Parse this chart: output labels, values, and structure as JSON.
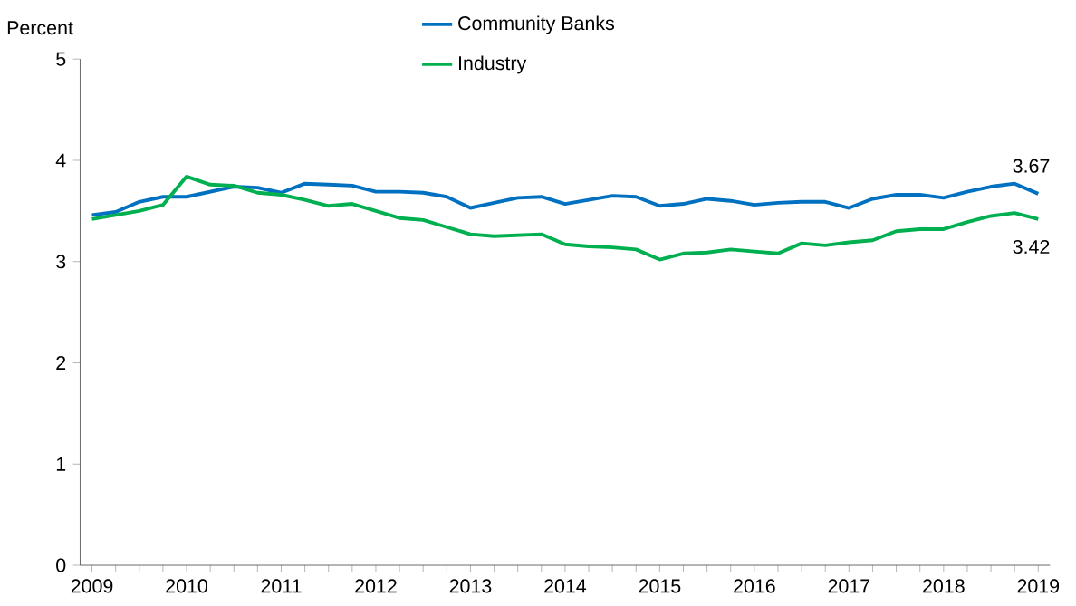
{
  "chart_data": {
    "type": "line",
    "ylabel": "Percent",
    "categories": [
      "2009",
      null,
      null,
      null,
      "2010",
      null,
      null,
      null,
      "2011",
      null,
      null,
      null,
      "2012",
      null,
      null,
      null,
      "2013",
      null,
      null,
      null,
      "2014",
      null,
      null,
      null,
      "2015",
      null,
      null,
      null,
      "2016",
      null,
      null,
      null,
      "2017",
      null,
      null,
      null,
      "2018",
      null,
      null,
      null,
      "2019"
    ],
    "series": [
      {
        "name": "Community Banks",
        "color": "#0070c0",
        "values": [
          3.46,
          3.49,
          3.59,
          3.64,
          3.64,
          3.69,
          3.74,
          3.73,
          3.68,
          3.77,
          3.76,
          3.75,
          3.69,
          3.69,
          3.68,
          3.64,
          3.53,
          3.58,
          3.63,
          3.64,
          3.57,
          3.61,
          3.65,
          3.64,
          3.55,
          3.57,
          3.62,
          3.6,
          3.56,
          3.58,
          3.59,
          3.59,
          3.53,
          3.62,
          3.66,
          3.66,
          3.63,
          3.69,
          3.74,
          3.77,
          3.67
        ]
      },
      {
        "name": "Industry",
        "color": "#00b050",
        "values": [
          3.42,
          3.46,
          3.5,
          3.56,
          3.84,
          3.76,
          3.75,
          3.68,
          3.66,
          3.61,
          3.55,
          3.57,
          3.5,
          3.43,
          3.41,
          3.34,
          3.27,
          3.25,
          3.26,
          3.27,
          3.17,
          3.15,
          3.14,
          3.12,
          3.02,
          3.08,
          3.09,
          3.12,
          3.1,
          3.08,
          3.18,
          3.16,
          3.19,
          3.21,
          3.3,
          3.32,
          3.32,
          3.39,
          3.45,
          3.48,
          3.42
        ]
      }
    ],
    "annotations": [
      {
        "text": "3.67",
        "x": "2019",
        "y": 3.67
      },
      {
        "text": "3.42",
        "x": "2019",
        "y": 3.42
      }
    ],
    "ylim": [
      0,
      5
    ],
    "yticks": [
      0,
      1,
      2,
      3,
      4,
      5
    ],
    "legend": "top",
    "marker": "none",
    "line_style": "solid",
    "grid": false
  }
}
